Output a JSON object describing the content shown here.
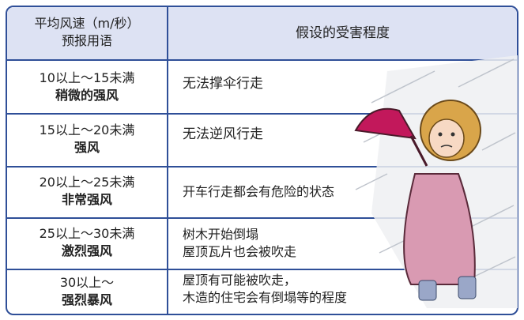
{
  "table": {
    "header": {
      "left": [
        "平均风速（m/秒）",
        "预报用语"
      ],
      "right": "假设的受害程度"
    },
    "rows": [
      {
        "speed": "10以上～15未满",
        "term": "稍微的强风",
        "damage": [
          "无法撑伞行走"
        ]
      },
      {
        "speed": "15以上～20未满",
        "term": "强风",
        "damage": [
          "无法逆风行走"
        ]
      },
      {
        "speed": "20以上～25未满",
        "term": "非常强风",
        "damage": [
          "开车行走都会有危险的状态"
        ]
      },
      {
        "speed": "25以上～30未满",
        "term": "激烈强风",
        "damage": [
          "树木开始倒塌",
          "屋顶瓦片也会被吹走"
        ]
      },
      {
        "speed": "30以上～",
        "term": "强烈暴风",
        "damage": [
          "屋顶有可能被吹走，",
          "木造的住宅会有倒塌等的程度"
        ]
      }
    ]
  }
}
